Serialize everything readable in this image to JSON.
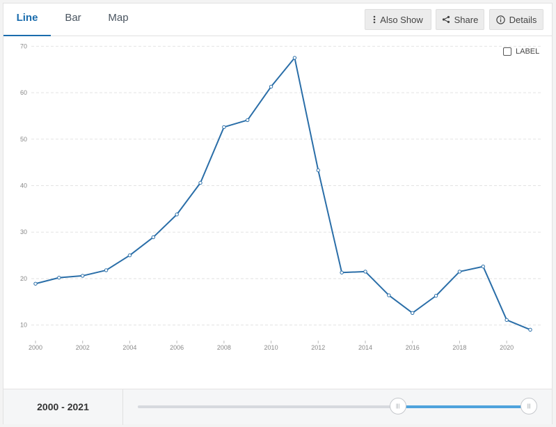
{
  "tabs": [
    {
      "label": "Line",
      "active": true
    },
    {
      "label": "Bar",
      "active": false
    },
    {
      "label": "Map",
      "active": false
    }
  ],
  "toolbar": {
    "also_show": {
      "label": "Also Show",
      "icon": "vertical-dots-icon"
    },
    "share": {
      "label": "Share",
      "icon": "share-icon"
    },
    "details": {
      "label": "Details",
      "icon": "info-icon"
    }
  },
  "label_toggle": {
    "text": "LABEL",
    "checked": false
  },
  "colors": {
    "line": "#2a6ea8",
    "accent": "#1a6cad",
    "slider_fill": "#4fa3dc",
    "grid": "#e2e2e2"
  },
  "chart_data": {
    "type": "line",
    "title": "",
    "xlabel": "",
    "ylabel": "",
    "x": [
      2000,
      2001,
      2002,
      2003,
      2004,
      2005,
      2006,
      2007,
      2008,
      2009,
      2010,
      2011,
      2012,
      2013,
      2014,
      2015,
      2016,
      2017,
      2018,
      2019,
      2020,
      2021
    ],
    "series": [
      {
        "values": [
          18.9,
          20.2,
          20.6,
          21.8,
          25.0,
          28.9,
          33.8,
          40.6,
          52.6,
          54.1,
          61.3,
          67.5,
          43.3,
          21.3,
          21.5,
          16.4,
          12.6,
          16.3,
          21.5,
          22.6,
          11.1,
          9.0
        ]
      }
    ],
    "ylim": [
      8,
      72
    ],
    "yticks": [
      10,
      20,
      30,
      40,
      50,
      60,
      70
    ],
    "xticks": [
      2000,
      2002,
      2004,
      2006,
      2008,
      2010,
      2012,
      2014,
      2016,
      2018,
      2020
    ],
    "grid": "horizontal-dashed",
    "legend": "none"
  },
  "range": {
    "label": "2000 - 2021",
    "start_fraction": 0.665,
    "end_fraction": 1.0,
    "grip_icon": "grip-lines-icon"
  }
}
